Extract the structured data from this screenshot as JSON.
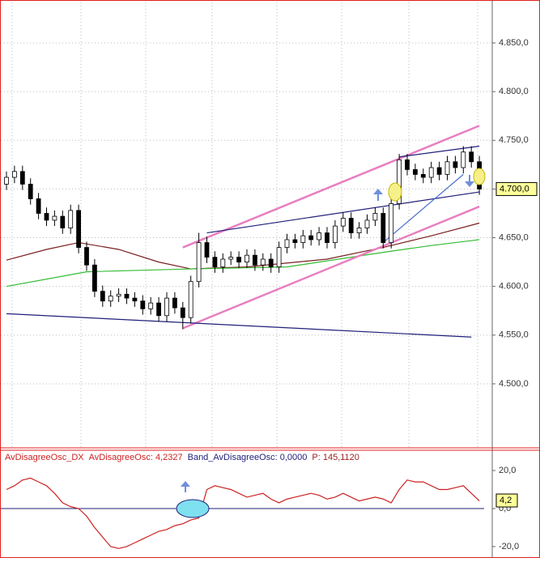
{
  "chart_data": [
    {
      "type": "candlestick",
      "open": [
        4.705,
        4.712,
        4.718,
        4.705,
        4.69,
        4.675,
        4.668,
        4.672,
        4.66,
        4.678,
        4.64,
        4.622,
        4.595,
        4.585,
        4.59,
        4.592,
        4.588,
        4.585,
        4.577,
        4.583,
        4.57,
        4.588,
        4.578,
        4.568,
        4.605,
        4.645,
        4.63,
        4.62,
        4.628,
        4.63,
        4.625,
        4.632,
        4.622,
        4.628,
        4.62,
        4.64,
        4.648,
        4.645,
        4.652,
        4.648,
        4.655,
        4.645,
        4.662,
        4.67,
        4.655,
        4.66,
        4.668,
        4.675,
        4.645,
        4.685,
        4.73,
        4.72,
        4.715,
        4.712,
        4.722,
        4.715,
        4.728,
        4.722,
        4.738,
        4.728
      ],
      "high": [
        4.718,
        4.724,
        4.724,
        4.711,
        4.696,
        4.681,
        4.678,
        4.678,
        4.684,
        4.684,
        4.646,
        4.628,
        4.601,
        4.596,
        4.598,
        4.598,
        4.594,
        4.591,
        4.589,
        4.589,
        4.594,
        4.594,
        4.584,
        4.611,
        4.655,
        4.651,
        4.636,
        4.634,
        4.636,
        4.636,
        4.638,
        4.638,
        4.634,
        4.634,
        4.646,
        4.654,
        4.654,
        4.658,
        4.658,
        4.661,
        4.661,
        4.668,
        4.676,
        4.676,
        4.666,
        4.674,
        4.681,
        4.681,
        4.691,
        4.736,
        4.736,
        4.726,
        4.721,
        4.728,
        4.728,
        4.734,
        4.734,
        4.744,
        4.744,
        4.734
      ],
      "low": [
        4.699,
        4.706,
        4.699,
        4.684,
        4.669,
        4.662,
        4.662,
        4.654,
        4.654,
        4.634,
        4.616,
        4.589,
        4.579,
        4.579,
        4.584,
        4.582,
        4.579,
        4.571,
        4.571,
        4.564,
        4.564,
        4.572,
        4.556,
        4.562,
        4.599,
        4.624,
        4.614,
        4.614,
        4.622,
        4.619,
        4.619,
        4.616,
        4.616,
        4.614,
        4.614,
        4.634,
        4.639,
        4.639,
        4.642,
        4.642,
        4.639,
        4.639,
        4.656,
        4.649,
        4.649,
        4.654,
        4.662,
        4.639,
        4.639,
        4.679,
        4.714,
        4.709,
        4.706,
        4.706,
        4.709,
        4.709,
        4.716,
        4.716,
        4.722,
        4.694
      ],
      "close": [
        4.712,
        4.718,
        4.705,
        4.69,
        4.675,
        4.668,
        4.672,
        4.66,
        4.678,
        4.64,
        4.622,
        4.595,
        4.585,
        4.59,
        4.592,
        4.588,
        4.585,
        4.577,
        4.583,
        4.57,
        4.588,
        4.578,
        4.568,
        4.605,
        4.645,
        4.63,
        4.62,
        4.628,
        4.63,
        4.625,
        4.632,
        4.622,
        4.628,
        4.62,
        4.64,
        4.648,
        4.645,
        4.652,
        4.648,
        4.655,
        4.645,
        4.662,
        4.67,
        4.655,
        4.66,
        4.668,
        4.675,
        4.645,
        4.685,
        4.73,
        4.72,
        4.715,
        4.712,
        4.722,
        4.715,
        4.728,
        4.722,
        4.738,
        4.728,
        4.7
      ],
      "lines": [
        {
          "color": "#7a1f1f",
          "x": [
            0,
            5,
            9,
            14,
            19,
            23,
            30,
            40,
            47,
            53,
            59
          ],
          "y": [
            4.627,
            4.638,
            4.645,
            4.638,
            4.625,
            4.618,
            4.62,
            4.628,
            4.64,
            4.652,
            4.665
          ]
        },
        {
          "color": "#33bb33",
          "x": [
            0,
            10,
            23,
            35,
            47,
            53,
            59
          ],
          "y": [
            4.6,
            4.615,
            4.618,
            4.62,
            4.635,
            4.642,
            4.648
          ]
        },
        {
          "color": "#e87fc0",
          "x": [
            22,
            59
          ],
          "y": [
            4.64,
            4.765
          ]
        },
        {
          "color": "#e87fc0",
          "x": [
            22,
            59
          ],
          "y": [
            4.557,
            4.682
          ]
        },
        {
          "color": "#1f1f7a",
          "x": [
            0,
            58
          ],
          "y": [
            4.572,
            4.548
          ]
        },
        {
          "color": "#1f1f7a",
          "x": [
            25,
            59
          ],
          "y": [
            4.655,
            4.697
          ]
        },
        {
          "color": "#1f1f7a",
          "x": [
            49,
            59
          ],
          "y": [
            4.733,
            4.744
          ]
        },
        {
          "color": "#4a6fd0",
          "x": [
            47,
            57
          ],
          "y": [
            4.645,
            4.715
          ]
        }
      ],
      "last": {
        "value": 4.7,
        "label": "4.700,0"
      },
      "ylim": [
        4.4351,
        4.8916
      ],
      "yticks": [
        {
          "value": 4.5,
          "label": "4.500,0"
        },
        {
          "value": 4.55,
          "label": "4.550,0"
        },
        {
          "value": 4.6,
          "label": "4.600,0"
        },
        {
          "value": 4.65,
          "label": "4.650,0"
        },
        {
          "value": 4.7,
          "label": "4.700,0"
        },
        {
          "value": 4.75,
          "label": "4.750,0"
        },
        {
          "value": 4.8,
          "label": "4.800,0"
        },
        {
          "value": 4.85,
          "label": "4.850,0"
        }
      ],
      "grid": true
    },
    {
      "type": "line",
      "legend": [
        "AvDisagreeOsc_DX",
        "AvDisagreeOsc: 4,2327",
        "Band_AvDisagreeOsc: 0,0000",
        "P: 145,1120"
      ],
      "series": [
        {
          "name": "AvDisagreeOsc",
          "color": "#cc2222",
          "values": [
            10,
            12,
            15,
            16,
            14,
            12,
            8,
            3,
            1,
            0,
            -4,
            -10,
            -15,
            -20,
            -21,
            -20,
            -18,
            -16,
            -14,
            -12,
            -11,
            -9,
            -8,
            -6,
            -5,
            10,
            12,
            11,
            10,
            8,
            6,
            7,
            8,
            5,
            3,
            5,
            6,
            7,
            8,
            7,
            5,
            6,
            8,
            6,
            4,
            5,
            6,
            5,
            3,
            10,
            15,
            14,
            14,
            12,
            10,
            10,
            11,
            12,
            8,
            4
          ]
        }
      ],
      "band": {
        "color": "#1f1f7a",
        "value": 0
      },
      "last": {
        "value": 4.2327,
        "label": "4,2"
      },
      "ylim": [
        -24.7,
        29.8
      ],
      "yticks": [
        {
          "value": 20,
          "label": "20,0"
        },
        {
          "value": 0,
          "label": "0,0"
        },
        {
          "value": -20,
          "label": "-20,0"
        }
      ],
      "grid": true
    }
  ]
}
